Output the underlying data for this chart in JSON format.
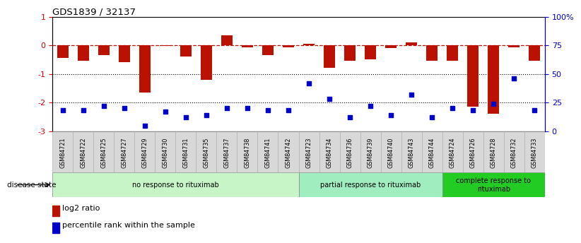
{
  "title": "GDS1839 / 32137",
  "samples": [
    "GSM84721",
    "GSM84722",
    "GSM84725",
    "GSM84727",
    "GSM84729",
    "GSM84730",
    "GSM84731",
    "GSM84735",
    "GSM84737",
    "GSM84738",
    "GSM84741",
    "GSM84742",
    "GSM84723",
    "GSM84734",
    "GSM84736",
    "GSM84739",
    "GSM84740",
    "GSM84743",
    "GSM84744",
    "GSM84724",
    "GSM84726",
    "GSM84728",
    "GSM84732",
    "GSM84733"
  ],
  "log2_ratio": [
    -0.45,
    -0.55,
    -0.35,
    -0.6,
    -1.65,
    -0.02,
    -0.4,
    -1.2,
    0.35,
    -0.08,
    -0.35,
    -0.08,
    0.06,
    -0.8,
    -0.55,
    -0.5,
    -0.1,
    0.1,
    -0.55,
    -0.55,
    -2.15,
    -2.4,
    -0.08,
    -0.55
  ],
  "percentile_pct": [
    18,
    18,
    22,
    20,
    5,
    17,
    12,
    14,
    20,
    20,
    18,
    18,
    42,
    28,
    12,
    22,
    14,
    32,
    12,
    20,
    18,
    24,
    46,
    18
  ],
  "groups": [
    {
      "label": "no response to rituximab",
      "start": 0,
      "end": 12,
      "color": "#c8f5c8"
    },
    {
      "label": "partial response to rituximab",
      "start": 12,
      "end": 19,
      "color": "#a0edc0"
    },
    {
      "label": "complete response to\nrituximab",
      "start": 19,
      "end": 24,
      "color": "#22cc22"
    }
  ],
  "bar_color": "#bb1100",
  "dot_color": "#0000cc",
  "dashed_color": "#bb1100",
  "bg_color": "#ffffff",
  "left_tick_color": "#cc0000",
  "right_tick_color": "#0000cc",
  "legend_bar_label": "log2 ratio",
  "legend_dot_label": "percentile rank within the sample",
  "disease_state_label": "disease state",
  "ylim": [
    -3,
    1
  ],
  "yticks_left": [
    -3,
    -2,
    -1,
    0,
    1
  ],
  "ytick_labels_left": [
    "-3",
    "-2",
    "-1",
    "0",
    "1"
  ],
  "yticks_right_pct": [
    0,
    25,
    50,
    75,
    100
  ],
  "ytick_labels_right": [
    "0",
    "25",
    "50",
    "75",
    "100%"
  ]
}
